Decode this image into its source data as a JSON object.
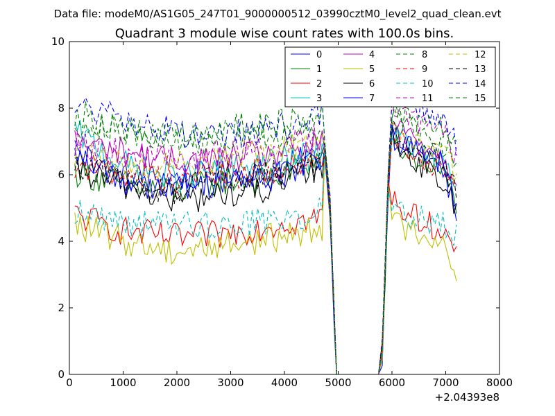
{
  "header": {
    "suptitle": "Data file: modeM0/AS1G05_247T01_9000000512_03990cztM0_level2_quad_clean.evt"
  },
  "chart_data": {
    "type": "line",
    "title": "Quadrant 3 module wise count rates with 100.0s bins.",
    "xlabel": "",
    "ylabel": "",
    "x_offset_label": "+2.04393e8",
    "xlim": [
      0,
      8000
    ],
    "ylim": [
      0,
      10
    ],
    "xticks": [
      0,
      1000,
      2000,
      3000,
      4000,
      5000,
      6000,
      7000,
      8000
    ],
    "yticks": [
      0,
      2,
      4,
      6,
      8,
      10
    ],
    "grid": false,
    "legend_position": "top-right",
    "legend_columns": 4,
    "x_break": {
      "x": [
        4750,
        4850,
        4920,
        4970,
        5050,
        5750,
        5820,
        5870,
        5930
      ],
      "y": [
        6.8,
        5.0,
        2.0,
        0.0,
        0.0,
        0.0,
        0.8,
        3.0,
        5.8
      ]
    },
    "x_segment_a": {
      "start": 100,
      "end": 4700,
      "step": 50
    },
    "x_segment_b": {
      "start": 6000,
      "end": 7200,
      "step": 50
    },
    "series": [
      {
        "name": "0",
        "color": "#0000ff",
        "dashed": false,
        "levels": [
          6.6,
          5.9,
          5.9,
          6.0,
          6.1,
          6.6
        ],
        "late": [
          7.2,
          6.8,
          6.6,
          6.5,
          6.0,
          4.8
        ]
      },
      {
        "name": "1",
        "color": "#008000",
        "dashed": false,
        "levels": [
          6.1,
          5.7,
          5.5,
          5.8,
          5.9,
          6.5
        ],
        "late": [
          7.1,
          6.6,
          6.4,
          6.3,
          6.0,
          5.2
        ]
      },
      {
        "name": "2",
        "color": "#ff0000",
        "dashed": false,
        "levels": [
          4.8,
          4.3,
          4.1,
          4.2,
          4.5,
          4.7
        ],
        "late": [
          5.4,
          4.9,
          4.7,
          4.5,
          4.3,
          3.6
        ]
      },
      {
        "name": "3",
        "color": "#00bfbf",
        "dashed": false,
        "levels": [
          7.3,
          6.3,
          5.9,
          6.2,
          6.4,
          6.6
        ],
        "late": [
          7.3,
          7.0,
          6.8,
          6.5,
          6.3,
          5.6
        ]
      },
      {
        "name": "4",
        "color": "#bf00bf",
        "dashed": false,
        "levels": [
          7.0,
          6.7,
          6.4,
          6.5,
          6.6,
          6.9
        ],
        "late": [
          7.6,
          7.3,
          7.0,
          6.8,
          6.5,
          5.8
        ]
      },
      {
        "name": "5",
        "color": "#bfbf00",
        "dashed": false,
        "levels": [
          4.5,
          4.0,
          3.7,
          3.9,
          4.1,
          4.4
        ],
        "late": [
          4.6,
          4.4,
          4.3,
          4.1,
          4.0,
          3.1
        ]
      },
      {
        "name": "6",
        "color": "#000000",
        "dashed": false,
        "levels": [
          6.1,
          5.7,
          5.2,
          5.4,
          5.6,
          6.2
        ],
        "late": [
          7.3,
          6.6,
          6.4,
          6.0,
          5.8,
          4.8
        ]
      },
      {
        "name": "7",
        "color": "#0000ff",
        "dashed": false,
        "levels": [
          6.6,
          5.8,
          5.6,
          5.8,
          5.9,
          6.5
        ],
        "late": [
          7.2,
          6.9,
          6.7,
          6.5,
          6.3,
          5.0
        ]
      },
      {
        "name": "8",
        "color": "#008000",
        "dashed": true,
        "levels": [
          7.9,
          7.3,
          7.0,
          7.1,
          7.1,
          7.4
        ],
        "late": [
          8.0,
          7.7,
          7.4,
          7.1,
          6.9,
          6.4
        ]
      },
      {
        "name": "9",
        "color": "#ff0000",
        "dashed": true,
        "levels": [
          6.3,
          6.0,
          5.9,
          6.0,
          6.1,
          6.3
        ],
        "late": [
          7.3,
          6.9,
          6.6,
          6.4,
          6.2,
          5.9
        ]
      },
      {
        "name": "10",
        "color": "#00bfbf",
        "dashed": true,
        "levels": [
          4.9,
          4.6,
          4.5,
          4.5,
          4.6,
          4.9
        ],
        "late": [
          5.0,
          4.9,
          4.7,
          4.6,
          4.5,
          4.1
        ]
      },
      {
        "name": "11",
        "color": "#bf00bf",
        "dashed": true,
        "levels": [
          6.9,
          6.6,
          6.4,
          6.6,
          6.8,
          7.2
        ],
        "late": [
          8.2,
          7.8,
          7.6,
          7.4,
          7.2,
          6.6
        ]
      },
      {
        "name": "12",
        "color": "#bfbf00",
        "dashed": true,
        "levels": [
          6.6,
          6.3,
          6.3,
          6.5,
          6.7,
          7.0
        ],
        "late": [
          7.5,
          7.2,
          7.0,
          6.8,
          6.6,
          6.0
        ]
      },
      {
        "name": "13",
        "color": "#000000",
        "dashed": true,
        "levels": [
          6.4,
          5.8,
          5.5,
          5.9,
          6.0,
          6.4
        ],
        "late": [
          7.4,
          7.0,
          6.8,
          6.7,
          6.3,
          5.4
        ]
      },
      {
        "name": "14",
        "color": "#0000ff",
        "dashed": true,
        "levels": [
          8.1,
          7.6,
          7.3,
          7.2,
          7.3,
          7.9
        ],
        "late": [
          8.6,
          8.3,
          8.1,
          7.9,
          7.6,
          6.9
        ]
      },
      {
        "name": "15",
        "color": "#008000",
        "dashed": true,
        "levels": [
          7.6,
          7.3,
          7.1,
          7.4,
          7.5,
          7.8
        ],
        "late": [
          8.0,
          7.8,
          7.6,
          7.5,
          7.3,
          6.7
        ]
      }
    ]
  }
}
